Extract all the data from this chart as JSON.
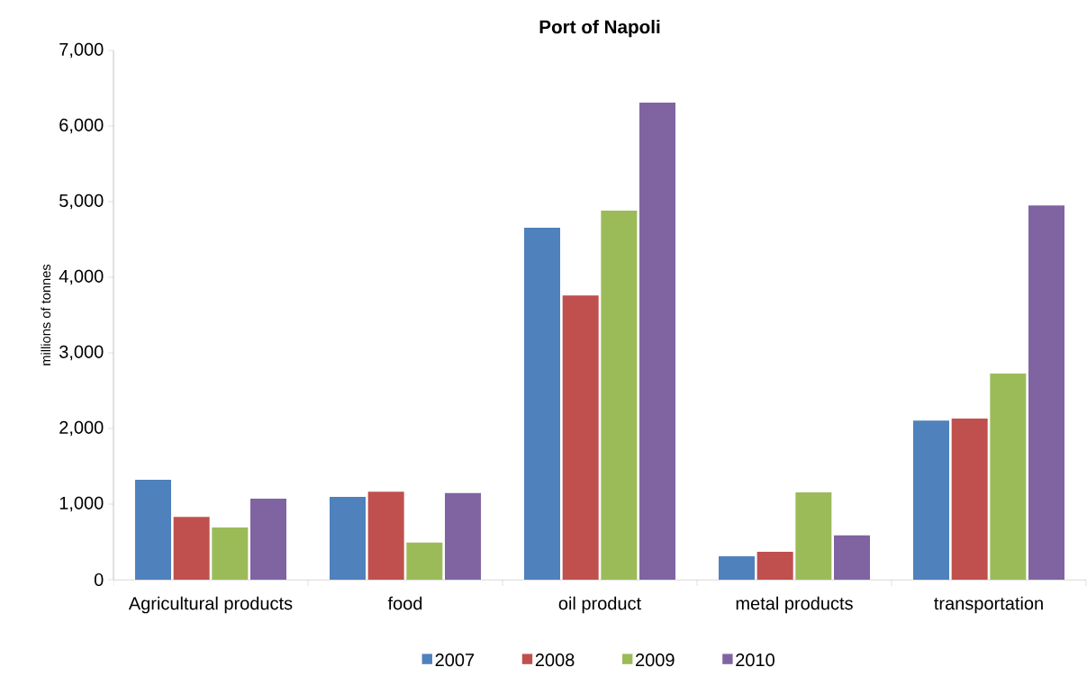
{
  "chart_data": {
    "type": "bar",
    "title": "Port of Napoli",
    "ylabel": "millions of tonnes",
    "categories": [
      "Agricultural products",
      "food",
      "oil product",
      "metal products",
      "transportation"
    ],
    "series": [
      {
        "name": "2007",
        "color": "#4f81bd",
        "values": [
          1320,
          1095,
          4655,
          310,
          2105
        ]
      },
      {
        "name": "2008",
        "color": "#c0504d",
        "values": [
          830,
          1165,
          3760,
          370,
          2130
        ]
      },
      {
        "name": "2009",
        "color": "#9bbb59",
        "values": [
          690,
          490,
          4880,
          1155,
          2725
        ]
      },
      {
        "name": "2010",
        "color": "#8064a2",
        "values": [
          1070,
          1145,
          6310,
          585,
          4950
        ]
      }
    ],
    "ylim": [
      0,
      7000
    ],
    "yticks": [
      0,
      {
        "value": 1000,
        "label": "1,000"
      },
      {
        "value": 2000,
        "label": "2,000"
      },
      {
        "value": 3000,
        "label": "3,000"
      },
      {
        "value": 4000,
        "label": "4,000"
      },
      {
        "value": 5000,
        "label": "5,000"
      },
      {
        "value": 6000,
        "label": "6,000"
      },
      {
        "value": 7000,
        "label": "7,000"
      }
    ],
    "legend": "bottom",
    "grid": false
  }
}
